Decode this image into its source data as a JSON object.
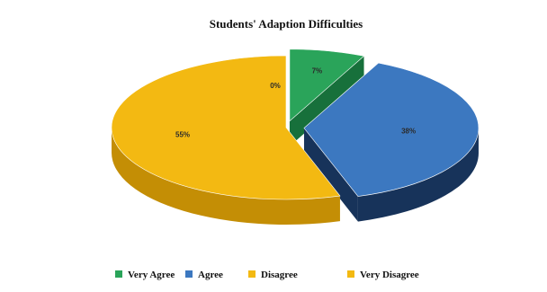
{
  "chart_data": {
    "type": "pie",
    "title": "Students' Adaption Difficulties",
    "series": [
      {
        "name": "Very Agree",
        "value": 7,
        "label": "7%",
        "color": "#2aa45a",
        "side_color": "#17703b"
      },
      {
        "name": "Agree",
        "value": 38,
        "label": "38%",
        "color": "#3c78c0",
        "side_color": "#17335a"
      },
      {
        "name": "Disagree",
        "value": 55,
        "label": "55%",
        "color": "#f3b912",
        "side_color": "#c48e05"
      },
      {
        "name": "Very Disagree",
        "value": 0,
        "label": "0%",
        "color": "#f3b912",
        "side_color": "#c48e05"
      }
    ],
    "legend_position": "bottom",
    "style": "3d-exploded"
  }
}
